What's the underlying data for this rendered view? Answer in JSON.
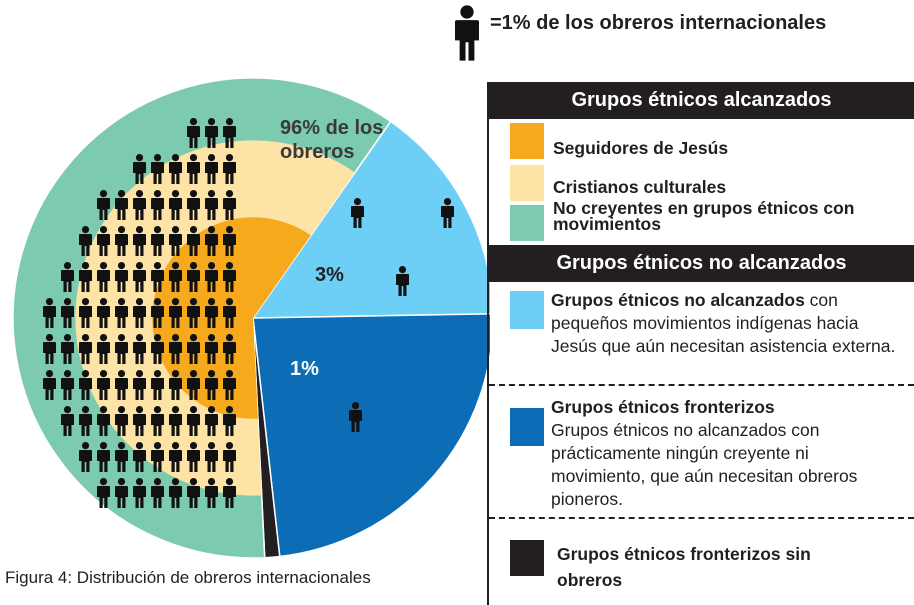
{
  "header": {
    "note": "=1% de los obreros internacionales"
  },
  "chart_data": {
    "type": "pie",
    "start_angle": 35,
    "slices": [
      {
        "color": "#6dcff6",
        "value": 15
      },
      {
        "color": "#0c6db6",
        "value": 23.5
      },
      {
        "color": "#231f20",
        "value": 1
      },
      {
        "color": "#7ccbae",
        "value": 60.5,
        "layers": [
          {
            "color": "#fde4a6"
          },
          {
            "color": "#f6a91c"
          }
        ]
      }
    ],
    "workers": [
      {
        "label": "96% de los obreros",
        "value": 96
      },
      {
        "label": "3%",
        "value": 3
      },
      {
        "label": "1%",
        "value": 1
      }
    ]
  },
  "legend": {
    "reached_title": "Grupos étnicos alcanzados",
    "unreached_title": "Grupos étnicos no alcanzados",
    "items": [
      {
        "color": "#f6a91c",
        "bold": "Seguidores de Jesús"
      },
      {
        "color": "#fde4a6",
        "bold": "Cristianos culturales"
      },
      {
        "color": "#7ccbae",
        "bold": "No creyentes en grupos étnicos con movimientos"
      },
      {
        "color": "#6dcff6",
        "bold": "Grupos étnicos no alcanzados",
        "text": " con pequeños movimientos indígenas hacia Jesús que aún necesitan asistencia externa."
      },
      {
        "color": "#0c6db6",
        "bold": "Grupos étnicos fronterizos",
        "text": "Grupos étnicos no alcanzados con prácticamente ningún creyente ni movimiento, que aún necesitan obreros pioneros."
      },
      {
        "color": "#231f20",
        "bold": "Grupos étnicos fronterizos sin obreros"
      }
    ]
  },
  "caption": "Figura 4: Distribución de obreros internacionales"
}
